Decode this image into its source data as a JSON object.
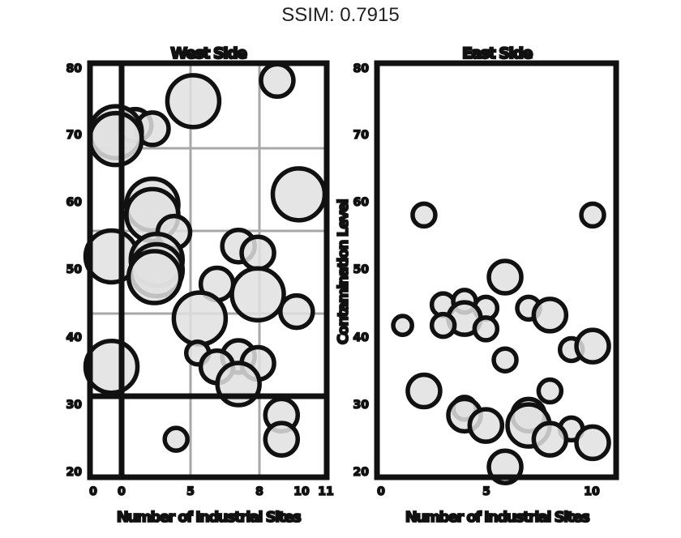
{
  "header": {
    "title": "SSIM: 0.7915"
  },
  "style": {
    "bubble_fill": "#e0e0e0",
    "overlap_fill": "#9a9a9a",
    "stroke": "#111111",
    "grid": "#a8a8a8"
  },
  "chart_data": [
    {
      "type": "scatter",
      "title": "West Side",
      "xlabel": "Number of Industrial Sites",
      "ylabel": "",
      "xlim": [
        0,
        11
      ],
      "ylim": [
        20,
        80
      ],
      "grid": true,
      "x_ticks": [
        "0",
        "0",
        "5",
        "8",
        "10",
        "11"
      ],
      "y_ticks": [
        "80",
        "70",
        "60",
        "50",
        "40",
        "30",
        "20"
      ],
      "points": [
        {
          "x": 8.7,
          "y": 77.5,
          "s": 1
        },
        {
          "x": 4.8,
          "y": 74.5,
          "s": 2
        },
        {
          "x": 2.1,
          "y": 71.0,
          "s": 1
        },
        {
          "x": 2.9,
          "y": 70.5,
          "s": 1
        },
        {
          "x": 1.2,
          "y": 70.0,
          "s": 2
        },
        {
          "x": 1.2,
          "y": 69.0,
          "s": 2
        },
        {
          "x": 9.7,
          "y": 61.0,
          "s": 2
        },
        {
          "x": 2.9,
          "y": 59.5,
          "s": 2
        },
        {
          "x": 2.9,
          "y": 58.0,
          "s": 2
        },
        {
          "x": 3.9,
          "y": 55.5,
          "s": 1
        },
        {
          "x": 6.9,
          "y": 53.5,
          "s": 1
        },
        {
          "x": 7.8,
          "y": 52.5,
          "s": 1
        },
        {
          "x": 1.0,
          "y": 52.0,
          "s": 2
        },
        {
          "x": 3.1,
          "y": 51.5,
          "s": 2
        },
        {
          "x": 3.1,
          "y": 50.0,
          "s": 2
        },
        {
          "x": 3.0,
          "y": 49.0,
          "s": 2
        },
        {
          "x": 5.9,
          "y": 48.0,
          "s": 1
        },
        {
          "x": 7.8,
          "y": 46.5,
          "s": 2
        },
        {
          "x": 9.6,
          "y": 44.0,
          "s": 1
        },
        {
          "x": 5.1,
          "y": 43.0,
          "s": 2
        },
        {
          "x": 5.0,
          "y": 38.0,
          "s": 0.5
        },
        {
          "x": 6.9,
          "y": 37.5,
          "s": 1
        },
        {
          "x": 7.8,
          "y": 36.5,
          "s": 1
        },
        {
          "x": 1.0,
          "y": 36.0,
          "s": 2
        },
        {
          "x": 5.9,
          "y": 36.0,
          "s": 1
        },
        {
          "x": 6.9,
          "y": 33.5,
          "s": 1.5
        },
        {
          "x": 8.9,
          "y": 29.0,
          "s": 1
        },
        {
          "x": 4.0,
          "y": 25.5,
          "s": 0.5
        },
        {
          "x": 8.9,
          "y": 25.5,
          "s": 1
        }
      ]
    },
    {
      "type": "scatter",
      "title": "East Side",
      "xlabel": "Number of Industrial Sites",
      "ylabel": "Contamination Level",
      "xlim": [
        0,
        11.2
      ],
      "ylim": [
        20,
        80
      ],
      "grid": false,
      "x_ticks": [
        "0",
        "5",
        "10"
      ],
      "y_ticks": [
        "80",
        "70",
        "60",
        "50",
        "40",
        "30",
        "20"
      ],
      "points": [
        {
          "x": 2.2,
          "y": 58.0,
          "s": 0.5
        },
        {
          "x": 10.1,
          "y": 58.0,
          "s": 0.5
        },
        {
          "x": 6.0,
          "y": 49.0,
          "s": 1
        },
        {
          "x": 3.1,
          "y": 45.0,
          "s": 0.5
        },
        {
          "x": 4.1,
          "y": 45.5,
          "s": 0.5
        },
        {
          "x": 5.1,
          "y": 44.5,
          "s": 0.5
        },
        {
          "x": 7.1,
          "y": 44.5,
          "s": 0.5
        },
        {
          "x": 8.1,
          "y": 43.5,
          "s": 1
        },
        {
          "x": 4.1,
          "y": 43.0,
          "s": 1
        },
        {
          "x": 1.2,
          "y": 42.0,
          "s": 0.3
        },
        {
          "x": 3.1,
          "y": 42.0,
          "s": 0.5
        },
        {
          "x": 5.1,
          "y": 41.5,
          "s": 0.5
        },
        {
          "x": 9.1,
          "y": 38.5,
          "s": 0.5
        },
        {
          "x": 10.1,
          "y": 39.0,
          "s": 1
        },
        {
          "x": 6.0,
          "y": 37.0,
          "s": 0.5
        },
        {
          "x": 2.2,
          "y": 32.5,
          "s": 1
        },
        {
          "x": 8.1,
          "y": 32.5,
          "s": 0.5
        },
        {
          "x": 4.1,
          "y": 30.0,
          "s": 0.5
        },
        {
          "x": 4.1,
          "y": 29.0,
          "s": 1
        },
        {
          "x": 7.1,
          "y": 29.0,
          "s": 1
        },
        {
          "x": 5.1,
          "y": 27.5,
          "s": 1
        },
        {
          "x": 7.1,
          "y": 27.5,
          "s": 1.5
        },
        {
          "x": 9.1,
          "y": 27.0,
          "s": 0.5
        },
        {
          "x": 8.1,
          "y": 25.5,
          "s": 1
        },
        {
          "x": 10.1,
          "y": 25.0,
          "s": 1
        },
        {
          "x": 6.0,
          "y": 21.5,
          "s": 1
        }
      ]
    }
  ]
}
